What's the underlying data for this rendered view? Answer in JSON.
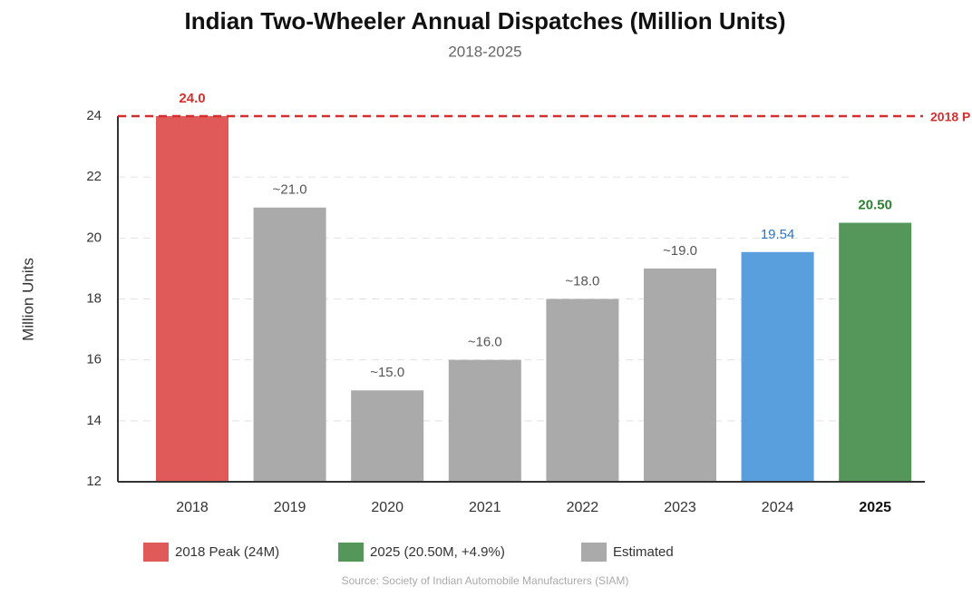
{
  "chart_data": {
    "type": "bar",
    "title": "Indian Two-Wheeler Annual Dispatches (Million Units)",
    "subtitle": "2018-2025",
    "y_label": "Million Units",
    "source": "Source: Society of Indian Automobile Manufacturers (SIAM)",
    "categories": [
      "2018",
      "2019",
      "2020",
      "2021",
      "2022",
      "2023",
      "2024",
      "2025"
    ],
    "values": [
      24.0,
      21.0,
      15.0,
      16.0,
      18.0,
      19.0,
      19.54,
      20.5
    ],
    "value_labels": [
      "24.0",
      "~21.0",
      "~15.0",
      "~16.0",
      "~18.0",
      "~19.0",
      "19.54",
      "20.50"
    ],
    "colors": [
      "#e05a5a",
      "#aaaaaa",
      "#aaaaaa",
      "#aaaaaa",
      "#aaaaaa",
      "#aaaaaa",
      "#5a9fdd",
      "#55965a"
    ],
    "value_label_colors": [
      "#d32f2f",
      "#555555",
      "#555555",
      "#555555",
      "#555555",
      "#555555",
      "#2a74c4",
      "#2e7d32"
    ],
    "ylim": [
      12,
      24
    ],
    "yticks": [
      12,
      14,
      16,
      18,
      20,
      22,
      24
    ],
    "grid": true,
    "reference_line": {
      "value": 24,
      "label": "2018 P",
      "color": "#d32f2f"
    },
    "legend": [
      {
        "label": "2018 Peak (24M)",
        "color": "#e05a5a"
      },
      {
        "label": "2025 (20.50M, +4.9%)",
        "color": "#55965a"
      },
      {
        "label": "Estimated",
        "color": "#aaaaaa"
      }
    ]
  }
}
